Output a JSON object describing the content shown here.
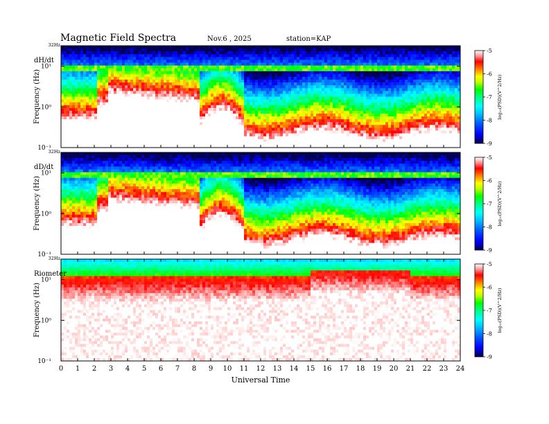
{
  "header": {
    "title": "Magnetic  Field  Spectra",
    "date": "Nov.6  , 2025",
    "station": "station=KAP"
  },
  "colors": {
    "background": "#ffffff",
    "colormap": [
      "#000040",
      "#0000ff",
      "#0080ff",
      "#00ffff",
      "#00ff80",
      "#00ff00",
      "#ffff00",
      "#ff8000",
      "#ff0000",
      "#ffffff"
    ]
  },
  "chart_data": [
    {
      "type": "heatmap",
      "panel_label": "dH/dt",
      "ylabel": "Frequency  (Hz)",
      "y_scale": "log",
      "ylim": [
        0.1,
        32
      ],
      "y_top_label": "32Hz",
      "y_ticks": [
        "10⁻¹",
        "10⁰",
        "10¹"
      ],
      "y_tick_values": [
        0.1,
        1,
        10
      ],
      "colorbar": {
        "label": "log₁₀(PSD)(V^2/Hz)",
        "range": [
          -9,
          -5
        ],
        "ticks": [
          "-5",
          "-6",
          "-7",
          "-8",
          "-9"
        ]
      }
    },
    {
      "type": "heatmap",
      "panel_label": "dD/dt",
      "ylabel": "Frequency  (Hz)",
      "y_scale": "log",
      "ylim": [
        0.1,
        32
      ],
      "y_top_label": "32Hz",
      "y_ticks": [
        "10⁻¹",
        "10⁰",
        "10¹"
      ],
      "y_tick_values": [
        0.1,
        1,
        10
      ],
      "colorbar": {
        "label": "log₁₀(PSD)(V^2/Hz)",
        "range": [
          -9,
          -5
        ],
        "ticks": [
          "-5",
          "-6",
          "-7",
          "-8",
          "-9"
        ]
      }
    },
    {
      "type": "heatmap",
      "panel_label": "Riometer",
      "ylabel": "Frequency  (Hz)",
      "y_scale": "log",
      "ylim": [
        0.1,
        32
      ],
      "y_top_label": "32Hz",
      "y_ticks": [
        "10⁻¹",
        "10⁰",
        "10¹"
      ],
      "y_tick_values": [
        0.1,
        1,
        10
      ],
      "colorbar": {
        "label": "log₁₀(PSD)(V^2/Hz)",
        "range": [
          -9,
          -5
        ],
        "ticks": [
          "-5",
          "-6",
          "-7",
          "-8",
          "-9"
        ]
      }
    }
  ],
  "x_axis": {
    "label": "Universal Time",
    "xlim": [
      0,
      24
    ],
    "ticks": [
      "0",
      "1",
      "2",
      "3",
      "4",
      "5",
      "6",
      "7",
      "8",
      "9",
      "10",
      "11",
      "12",
      "13",
      "14",
      "15",
      "16",
      "17",
      "18",
      "19",
      "20",
      "21",
      "22",
      "23",
      "24"
    ]
  }
}
